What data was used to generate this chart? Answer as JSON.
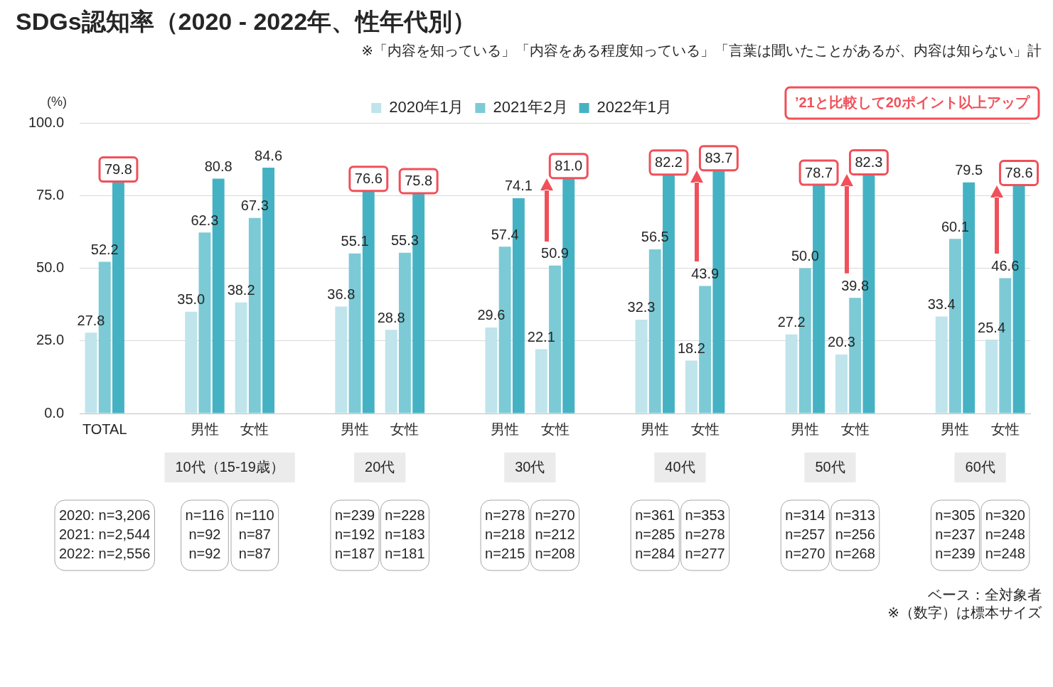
{
  "chart_data": {
    "type": "bar",
    "title": "SDGs認知率（2020 - 2022年、性年代別）",
    "subtitle": "※「内容を知っている」「内容をある程度知っている」「言葉は聞いたことがあるが、内容は知らない」計",
    "ylabel": "(%)",
    "categories": [
      "TOTAL",
      null,
      "男性",
      "女性",
      null,
      "男性",
      "女性",
      null,
      "男性",
      "女性",
      null,
      "男性",
      "女性",
      null,
      "男性",
      "女性",
      null,
      "男性",
      "女性"
    ],
    "series": [
      {
        "name": "2020年1月",
        "color": "#bfe4eb",
        "values": [
          27.8,
          null,
          35.0,
          38.2,
          null,
          36.8,
          28.8,
          null,
          29.6,
          22.1,
          null,
          32.3,
          18.2,
          null,
          27.2,
          20.3,
          null,
          33.4,
          25.4
        ],
        "value_labels": [
          "27.8",
          null,
          "35.0",
          "38.2",
          null,
          "36.8",
          "28.8",
          null,
          "29.6",
          "22.1",
          null,
          "32.3",
          "18.2",
          null,
          "27.2",
          "20.3",
          null,
          "33.4",
          "25.4"
        ]
      },
      {
        "name": "2021年2月",
        "color": "#7ccad6",
        "values": [
          52.2,
          null,
          62.3,
          67.3,
          null,
          55.1,
          55.3,
          null,
          57.4,
          50.9,
          null,
          56.5,
          43.9,
          null,
          50.0,
          39.8,
          null,
          60.1,
          46.6
        ],
        "value_labels": [
          "52.2",
          null,
          "62.3",
          "67.3",
          null,
          "55.1",
          "55.3",
          null,
          "57.4",
          "50.9",
          null,
          "56.5",
          "43.9",
          null,
          "50.0",
          "39.8",
          null,
          "60.1",
          "46.6"
        ]
      },
      {
        "name": "2022年1月",
        "color": "#45b2c4",
        "values": [
          79.8,
          null,
          80.8,
          84.6,
          null,
          76.6,
          75.8,
          null,
          74.1,
          81.0,
          null,
          82.2,
          83.7,
          null,
          78.7,
          82.3,
          null,
          79.5,
          78.6
        ],
        "value_labels": [
          "79.8",
          null,
          "80.8",
          "84.6",
          null,
          "76.6",
          "75.8",
          null,
          "74.1",
          "81.0",
          null,
          "82.2",
          "83.7",
          null,
          "78.7",
          "82.3",
          null,
          "79.5",
          "78.6"
        ]
      }
    ],
    "ylim": [
      0,
      100
    ],
    "yticks": [
      {
        "value": 0,
        "label": "0.0"
      },
      {
        "value": 25,
        "label": "25.0"
      },
      {
        "value": 50,
        "label": "50.0"
      },
      {
        "value": 75,
        "label": "75.0"
      },
      {
        "value": 100,
        "label": "100.0"
      }
    ],
    "grid": "y",
    "legend": "top",
    "annotations": [
      "’21と比較して20ポイント以上アップ",
      "10代（15-19歳）",
      "20代",
      "30代",
      "40代",
      "50代",
      "60代",
      "2020: n=3,206\n2021: n=2,544\n2022: n=2,556",
      "n=116\nn=92\nn=92",
      "n=110\nn=87\nn=87",
      "n=239\nn=192\nn=187",
      "n=228\nn=183\nn=181",
      "n=278\nn=218\nn=215",
      "n=270\nn=212\nn=208",
      "n=361\nn=285\nn=284",
      "n=353\nn=278\nn=277",
      "n=314\nn=257\nn=270",
      "n=313\nn=256\nn=268",
      "n=305\nn=237\nn=239",
      "n=320\nn=248\nn=248",
      "ベース：全対象者",
      "※（数字）は標本サイズ"
    ]
  }
}
